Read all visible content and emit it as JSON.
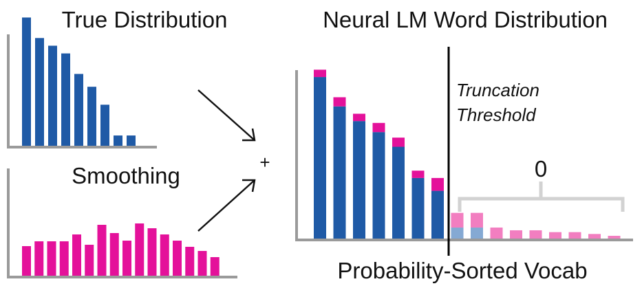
{
  "chart_data": [
    {
      "id": "true",
      "type": "bar",
      "title": "True Distribution",
      "values": [
        10.0,
        8.4,
        7.8,
        7.2,
        5.6,
        4.6,
        3.2,
        0.8,
        0.8
      ],
      "ylim": [
        0,
        10.4
      ],
      "color": "#1f5aa6"
    },
    {
      "id": "smooth",
      "type": "bar",
      "title": "Smoothing",
      "values": [
        4.3,
        5.0,
        5.0,
        5.0,
        6.0,
        4.5,
        7.4,
        6.2,
        5.1,
        7.6,
        6.9,
        6.0,
        5.1,
        4.2,
        3.6,
        2.7
      ],
      "ylim": [
        0,
        10
      ],
      "color": "#e4119a"
    },
    {
      "id": "lm",
      "type": "bar",
      "title": "Neural LM Word Distribution",
      "xlabel": "Probability-Sorted Vocab",
      "base_values": [
        8.8,
        7.2,
        6.4,
        5.8,
        5.0,
        3.3,
        2.6,
        0.6,
        0.6
      ],
      "smoothing_values": [
        0.4,
        0.5,
        0.4,
        0.5,
        0.5,
        0.4,
        0.7,
        0.8,
        0.8,
        0.6,
        0.45,
        0.45,
        0.35,
        0.35,
        0.25,
        0.15
      ],
      "truncated_after": 7,
      "ylim": [
        0,
        10.6
      ],
      "annotation": [
        "Truncation",
        "Threshold"
      ],
      "zero_label": "0",
      "colors": {
        "base": "#1f5aa6",
        "smoothing": "#e4119a",
        "base_truncated": "#85a9d3",
        "smoothing_truncated": "#f27ec0"
      }
    }
  ],
  "plus_label": "+"
}
